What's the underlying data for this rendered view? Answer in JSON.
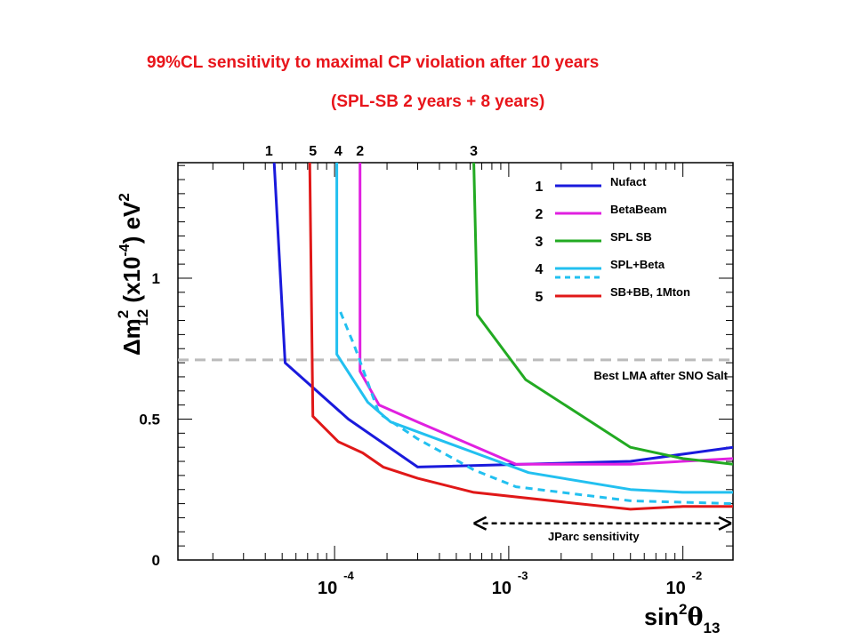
{
  "title_line1": "99%CL sensitivity to maximal CP violation after 10 years",
  "title_line2": "(SPL-SB 2 years + 8 years)",
  "chart_data": {
    "type": "line",
    "xlabel": "sin²θ13",
    "ylabel": "Δm²12 (x10⁻⁴) eV²",
    "xscale": "log",
    "xlim": [
      1.26e-05,
      0.0194
    ],
    "ylim": [
      0,
      1.41
    ],
    "x_ticks": [
      {
        "value": 0.0001,
        "base": "10",
        "exp": "-4"
      },
      {
        "value": 0.001,
        "base": "10",
        "exp": "-3"
      },
      {
        "value": 0.01,
        "base": "10",
        "exp": "-2"
      }
    ],
    "y_ticks": [
      {
        "value": 0,
        "label": "0"
      },
      {
        "value": 0.5,
        "label": "0.5"
      },
      {
        "value": 1,
        "label": "1"
      }
    ],
    "reference_line": {
      "y": 0.71,
      "label": "Best LMA after SNO Salt",
      "color": "#bbbbbb",
      "style": "dashed"
    },
    "annotation": {
      "label": "JParc sensitivity",
      "x_range": [
        0.00063,
        0.0194
      ],
      "y": 0.13
    },
    "series": [
      {
        "name": "Nufact",
        "id": "1",
        "color": "#1a1adc",
        "dashed": false,
        "points": [
          [
            4.5e-05,
            1.41
          ],
          [
            5.2e-05,
            0.7
          ],
          [
            0.00012,
            0.5
          ],
          [
            0.0003,
            0.33
          ],
          [
            0.005,
            0.35
          ],
          [
            0.0194,
            0.4
          ]
        ]
      },
      {
        "name": "BetaBeam",
        "id": "2",
        "color": "#e020e0",
        "dashed": false,
        "points": [
          [
            0.00014,
            1.41
          ],
          [
            0.00014,
            0.67
          ],
          [
            0.00018,
            0.55
          ],
          [
            0.0003,
            0.49
          ],
          [
            0.0011,
            0.34
          ],
          [
            0.005,
            0.34
          ],
          [
            0.0194,
            0.36
          ]
        ]
      },
      {
        "name": "SPL SB",
        "id": "3",
        "color": "#22aa22",
        "dashed": false,
        "points": [
          [
            0.00063,
            1.41
          ],
          [
            0.00066,
            0.87
          ],
          [
            0.00125,
            0.64
          ],
          [
            0.005,
            0.4
          ],
          [
            0.01,
            0.36
          ],
          [
            0.0194,
            0.34
          ]
        ]
      },
      {
        "name": "SPL+Beta",
        "id": "4",
        "color": "#22c0f0",
        "dashed": false,
        "points": [
          [
            0.000103,
            1.41
          ],
          [
            0.000103,
            0.73
          ],
          [
            0.000155,
            0.56
          ],
          [
            0.00021,
            0.49
          ],
          [
            0.0013,
            0.31
          ],
          [
            0.005,
            0.25
          ],
          [
            0.01,
            0.24
          ],
          [
            0.0194,
            0.24
          ]
        ]
      },
      {
        "name": "SPL+Beta",
        "id": "4",
        "color": "#22c0f0",
        "dashed": true,
        "points": [
          [
            0.000108,
            0.88
          ],
          [
            0.00013,
            0.76
          ],
          [
            0.00018,
            0.52
          ],
          [
            0.0003,
            0.43
          ],
          [
            0.00063,
            0.32
          ],
          [
            0.0011,
            0.26
          ],
          [
            0.005,
            0.21
          ],
          [
            0.0194,
            0.2
          ]
        ]
      },
      {
        "name": "SB+BB, 1Mton",
        "id": "5",
        "color": "#e01818",
        "dashed": false,
        "points": [
          [
            7.2e-05,
            1.41
          ],
          [
            7.5e-05,
            0.51
          ],
          [
            0.000105,
            0.42
          ],
          [
            0.000145,
            0.38
          ],
          [
            0.00019,
            0.33
          ],
          [
            0.0003,
            0.29
          ],
          [
            0.00063,
            0.24
          ],
          [
            0.005,
            0.18
          ],
          [
            0.01,
            0.19
          ],
          [
            0.0194,
            0.19
          ]
        ]
      }
    ],
    "top_labels": [
      {
        "text": "1",
        "x": 4.2e-05
      },
      {
        "text": "5",
        "x": 7.5e-05
      },
      {
        "text": "4",
        "x": 0.000105
      },
      {
        "text": "2",
        "x": 0.00014
      },
      {
        "text": "3",
        "x": 0.00063
      }
    ],
    "legend": {
      "placement": "top-right",
      "entries": [
        {
          "id": "1",
          "name": "Nufact",
          "color": "#1a1adc",
          "dashed": false
        },
        {
          "id": "2",
          "name": "BetaBeam",
          "color": "#e020e0",
          "dashed": false
        },
        {
          "id": "3",
          "name": "SPL SB",
          "color": "#22aa22",
          "dashed": false
        },
        {
          "id": "4",
          "name": "SPL+Beta",
          "color": "#22c0f0",
          "dashed": false,
          "dashed_companion": true
        },
        {
          "id": "5",
          "name": "SB+BB, 1Mton",
          "color": "#e01818",
          "dashed": false
        }
      ]
    }
  }
}
